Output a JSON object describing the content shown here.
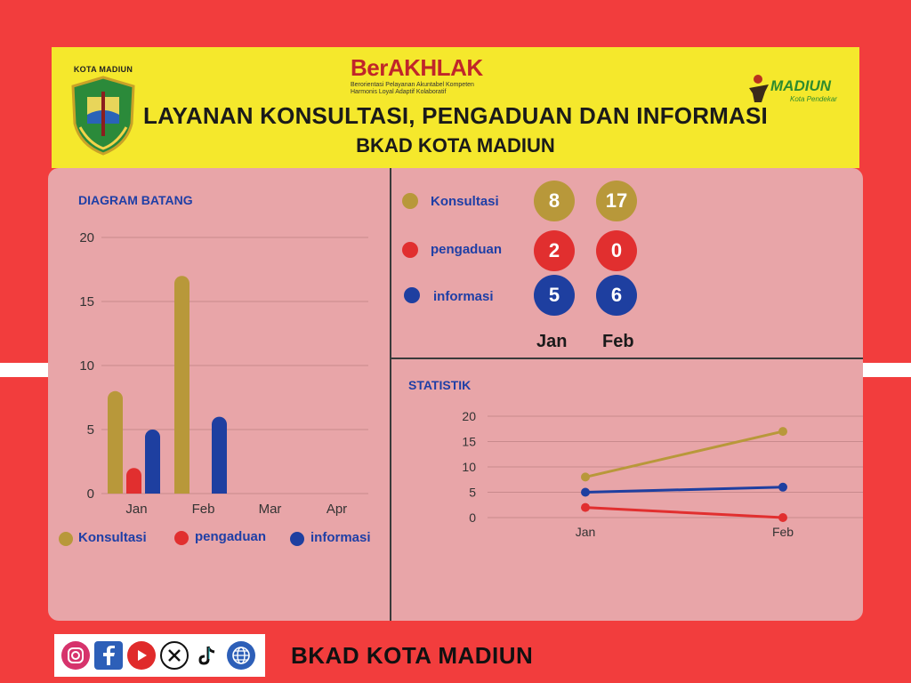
{
  "header": {
    "logo_left_caption": "KOTA MADIUN",
    "brand_name": "BerAKHLAK",
    "brand_line1": "Berorientasi Pelayanan Akuntabel Kompeten",
    "brand_line2": "Harmonis Loyal Adaptif Kolaboratif",
    "title_line1": "LAYANAN KONSULTASI, PENGADUAN DAN INFORMASI",
    "title_line2": "BKAD KOTA MADIUN",
    "logo_right_word": "MADIUN",
    "logo_right_sub": "Kota Pendekar"
  },
  "colors": {
    "konsultasi": "#b8983a",
    "pengaduan": "#e12f2f",
    "informasi": "#1e3fa0",
    "background": "#f23d3d",
    "header": "#f5e82c",
    "panel": "#e8a5a8"
  },
  "summary": {
    "rows": [
      {
        "label": "Konsultasi",
        "values": [
          "8",
          "17"
        ]
      },
      {
        "label": "pengaduan",
        "values": [
          "2",
          "0"
        ]
      },
      {
        "label": "informasi",
        "values": [
          "5",
          "6"
        ]
      }
    ],
    "months": [
      "Jan",
      "Feb"
    ]
  },
  "chart_data": [
    {
      "type": "bar",
      "title": "DIAGRAM BATANG",
      "categories": [
        "Jan",
        "Feb",
        "Mar",
        "Apr"
      ],
      "series": [
        {
          "name": "Konsultasi",
          "values": [
            8,
            17,
            null,
            null
          ]
        },
        {
          "name": "pengaduan",
          "values": [
            2,
            0,
            null,
            null
          ]
        },
        {
          "name": "informasi",
          "values": [
            5,
            6,
            null,
            null
          ]
        }
      ],
      "yticks": [
        "0",
        "5",
        "10",
        "15",
        "20"
      ],
      "ylim": [
        0,
        20
      ],
      "grid": true,
      "legend": "bottom"
    },
    {
      "type": "line",
      "title": "STATISTIK",
      "categories": [
        "Jan",
        "Feb"
      ],
      "series": [
        {
          "name": "Konsultasi",
          "values": [
            8,
            17
          ]
        },
        {
          "name": "pengaduan",
          "values": [
            2,
            0
          ]
        },
        {
          "name": "informasi",
          "values": [
            5,
            6
          ]
        }
      ],
      "yticks": [
        "0",
        "5",
        "10",
        "15",
        "20"
      ],
      "ylim": [
        0,
        20
      ],
      "grid": true
    }
  ],
  "footer": {
    "icons": [
      "instagram-icon",
      "facebook-icon",
      "youtube-icon",
      "x-icon",
      "tiktok-icon",
      "web-icon"
    ],
    "text": "BKAD KOTA MADIUN"
  }
}
